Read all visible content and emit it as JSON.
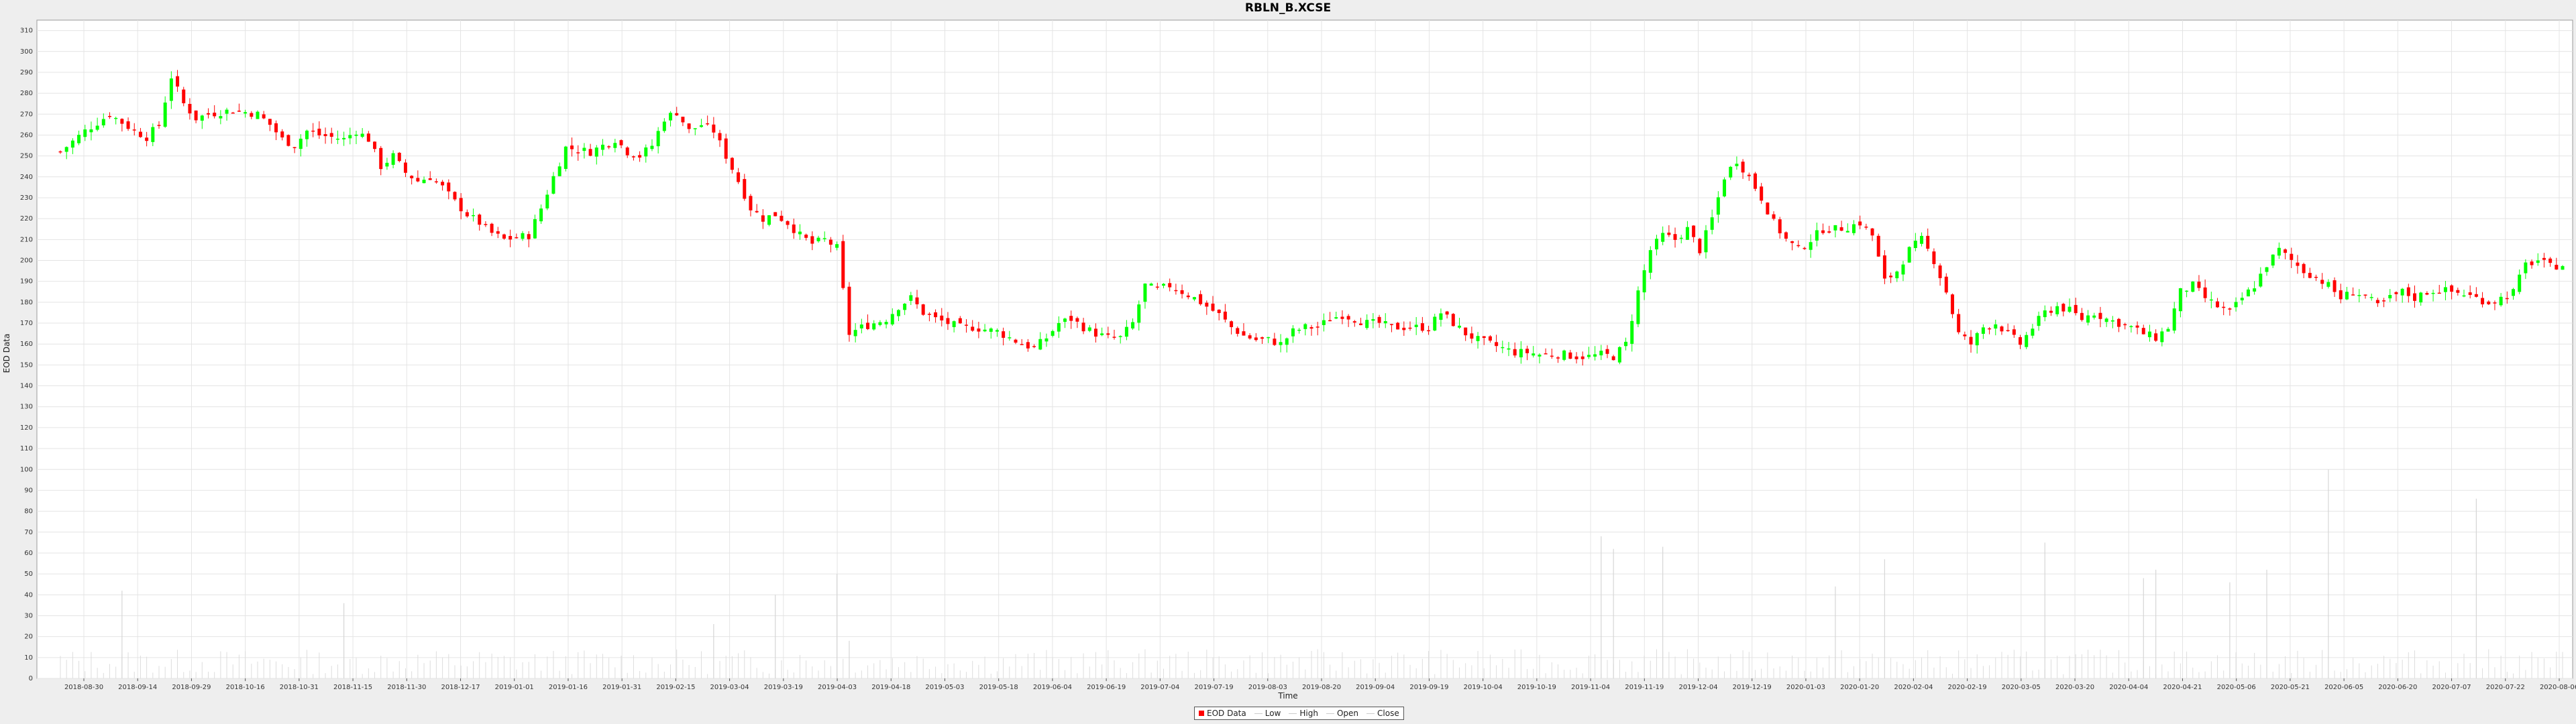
{
  "chart_data": {
    "type": "candlestick",
    "title": "RBLN_B.XCSE",
    "xlabel": "Time",
    "ylabel": "EOD Data",
    "ylim": [
      0,
      315
    ],
    "y_ticks": [
      0,
      10,
      20,
      30,
      40,
      50,
      60,
      70,
      80,
      90,
      100,
      110,
      120,
      130,
      140,
      150,
      160,
      170,
      180,
      190,
      200,
      210,
      220,
      230,
      240,
      250,
      260,
      270,
      280,
      290,
      300,
      310
    ],
    "x_ticks": [
      "2018-08-30",
      "2018-09-14",
      "2018-09-29",
      "2018-10-16",
      "2018-10-31",
      "2018-11-15",
      "2018-11-30",
      "2018-12-17",
      "2019-01-01",
      "2019-01-16",
      "2019-01-31",
      "2019-02-15",
      "2019-03-04",
      "2019-03-19",
      "2019-04-03",
      "2019-04-18",
      "2019-05-03",
      "2019-05-18",
      "2019-06-04",
      "2019-06-19",
      "2019-07-04",
      "2019-07-19",
      "2019-08-03",
      "2019-08-20",
      "2019-09-04",
      "2019-09-19",
      "2019-10-04",
      "2019-10-19",
      "2019-11-04",
      "2019-11-19",
      "2019-12-04",
      "2019-12-19",
      "2020-01-03",
      "2020-01-20",
      "2020-02-04",
      "2020-02-19",
      "2020-03-05",
      "2020-03-20",
      "2020-04-04",
      "2020-04-21",
      "2020-05-06",
      "2020-05-21",
      "2020-06-05",
      "2020-06-20",
      "2020-07-07",
      "2020-07-22",
      "2020-08-06"
    ],
    "grid": true,
    "legend_position": "bottom",
    "legend": [
      "EOD Data",
      "Low",
      "High",
      "Open",
      "Close"
    ],
    "up_color": "#00ff00",
    "down_color": "#ff0000",
    "approx_close_path": [
      [
        0,
        252
      ],
      [
        2,
        262
      ],
      [
        4,
        270
      ],
      [
        6,
        262
      ],
      [
        7,
        259
      ],
      [
        8,
        265
      ],
      [
        9,
        288
      ],
      [
        10,
        275
      ],
      [
        11,
        268
      ],
      [
        12,
        270
      ],
      [
        14,
        272
      ],
      [
        16,
        270
      ],
      [
        17,
        265
      ],
      [
        18,
        258
      ],
      [
        19,
        255
      ],
      [
        20,
        262
      ],
      [
        21,
        260
      ],
      [
        23,
        258
      ],
      [
        24,
        262
      ],
      [
        25,
        258
      ],
      [
        26,
        245
      ],
      [
        27,
        250
      ],
      [
        28,
        242
      ],
      [
        29,
        238
      ],
      [
        30,
        240
      ],
      [
        31,
        235
      ],
      [
        32,
        228
      ],
      [
        33,
        222
      ],
      [
        34,
        218
      ],
      [
        35,
        213
      ],
      [
        36,
        210
      ],
      [
        37,
        211
      ],
      [
        38,
        212
      ],
      [
        39,
        225
      ],
      [
        40,
        240
      ],
      [
        41,
        254
      ],
      [
        42,
        253
      ],
      [
        43,
        252
      ],
      [
        44,
        255
      ],
      [
        45,
        258
      ],
      [
        46,
        252
      ],
      [
        47,
        250
      ],
      [
        48,
        255
      ],
      [
        49,
        268
      ],
      [
        50,
        271
      ],
      [
        51,
        262
      ],
      [
        52,
        265
      ],
      [
        53,
        262
      ],
      [
        54,
        250
      ],
      [
        55,
        238
      ],
      [
        56,
        225
      ],
      [
        57,
        220
      ],
      [
        58,
        222
      ],
      [
        59,
        218
      ],
      [
        60,
        212
      ],
      [
        61,
        208
      ],
      [
        62,
        210
      ],
      [
        63,
        206
      ],
      [
        64,
        165
      ],
      [
        65,
        168
      ],
      [
        66,
        170
      ],
      [
        67,
        172
      ],
      [
        68,
        178
      ],
      [
        69,
        182
      ],
      [
        70,
        175
      ],
      [
        71,
        172
      ],
      [
        72,
        170
      ],
      [
        73,
        168
      ],
      [
        74,
        168
      ],
      [
        75,
        167
      ],
      [
        76,
        166
      ],
      [
        77,
        163
      ],
      [
        78,
        160
      ],
      [
        79,
        158
      ],
      [
        80,
        163
      ],
      [
        81,
        170
      ],
      [
        82,
        172
      ],
      [
        83,
        168
      ],
      [
        84,
        165
      ],
      [
        85,
        163
      ],
      [
        86,
        163
      ],
      [
        87,
        170
      ],
      [
        88,
        188
      ],
      [
        89,
        186
      ],
      [
        90,
        188
      ],
      [
        91,
        185
      ],
      [
        92,
        182
      ],
      [
        93,
        178
      ],
      [
        94,
        174
      ],
      [
        95,
        168
      ],
      [
        96,
        164
      ],
      [
        97,
        162
      ],
      [
        98,
        162
      ],
      [
        99,
        160
      ],
      [
        100,
        166
      ],
      [
        101,
        168
      ],
      [
        102,
        168
      ],
      [
        103,
        172
      ],
      [
        104,
        174
      ],
      [
        105,
        172
      ],
      [
        106,
        170
      ],
      [
        107,
        170
      ],
      [
        108,
        168
      ],
      [
        109,
        168
      ],
      [
        110,
        168
      ],
      [
        111,
        168
      ],
      [
        112,
        175
      ],
      [
        113,
        170
      ],
      [
        114,
        165
      ],
      [
        115,
        162
      ],
      [
        116,
        160
      ],
      [
        117,
        158
      ],
      [
        118,
        156
      ],
      [
        119,
        156
      ],
      [
        120,
        155
      ],
      [
        121,
        155
      ],
      [
        122,
        155
      ],
      [
        123,
        154
      ],
      [
        124,
        154
      ],
      [
        125,
        155
      ],
      [
        126,
        154
      ],
      [
        127,
        160
      ],
      [
        128,
        185
      ],
      [
        129,
        205
      ],
      [
        130,
        212
      ],
      [
        131,
        210
      ],
      [
        132,
        215
      ],
      [
        133,
        205
      ],
      [
        134,
        220
      ],
      [
        135,
        240
      ],
      [
        136,
        248
      ],
      [
        137,
        240
      ],
      [
        138,
        230
      ],
      [
        139,
        218
      ],
      [
        140,
        210
      ],
      [
        141,
        205
      ],
      [
        142,
        210
      ],
      [
        143,
        215
      ],
      [
        144,
        215
      ],
      [
        145,
        216
      ],
      [
        146,
        218
      ],
      [
        147,
        212
      ],
      [
        148,
        190
      ],
      [
        149,
        195
      ],
      [
        150,
        205
      ],
      [
        151,
        210
      ],
      [
        152,
        200
      ],
      [
        153,
        185
      ],
      [
        154,
        165
      ],
      [
        155,
        160
      ],
      [
        156,
        168
      ],
      [
        157,
        170
      ],
      [
        158,
        165
      ],
      [
        159,
        160
      ],
      [
        160,
        168
      ],
      [
        161,
        175
      ],
      [
        162,
        178
      ],
      [
        163,
        176
      ],
      [
        164,
        172
      ],
      [
        165,
        175
      ],
      [
        166,
        172
      ],
      [
        167,
        170
      ],
      [
        168,
        168
      ],
      [
        169,
        165
      ],
      [
        170,
        163
      ],
      [
        171,
        168
      ],
      [
        172,
        185
      ],
      [
        173,
        188
      ],
      [
        174,
        182
      ],
      [
        175,
        178
      ],
      [
        176,
        175
      ],
      [
        177,
        182
      ],
      [
        178,
        188
      ],
      [
        179,
        198
      ],
      [
        180,
        205
      ],
      [
        181,
        200
      ],
      [
        182,
        195
      ],
      [
        183,
        192
      ],
      [
        184,
        188
      ],
      [
        185,
        182
      ],
      [
        186,
        185
      ],
      [
        187,
        183
      ],
      [
        188,
        178
      ],
      [
        189,
        182
      ],
      [
        190,
        185
      ],
      [
        191,
        182
      ],
      [
        192,
        185
      ],
      [
        193,
        186
      ],
      [
        194,
        185
      ],
      [
        195,
        184
      ],
      [
        196,
        182
      ],
      [
        197,
        180
      ],
      [
        198,
        182
      ],
      [
        199,
        185
      ],
      [
        200,
        198
      ],
      [
        201,
        200
      ],
      [
        202,
        197
      ],
      [
        203,
        198
      ]
    ],
    "volume_spikes": [
      [
        5,
        42
      ],
      [
        23,
        36
      ],
      [
        53,
        26
      ],
      [
        58,
        40
      ],
      [
        63,
        50
      ],
      [
        64,
        18
      ],
      [
        125,
        68
      ],
      [
        126,
        62
      ],
      [
        130,
        63
      ],
      [
        144,
        44
      ],
      [
        148,
        57
      ],
      [
        161,
        65
      ],
      [
        169,
        48
      ],
      [
        170,
        52
      ],
      [
        176,
        46
      ],
      [
        179,
        52
      ],
      [
        184,
        100
      ],
      [
        196,
        86
      ]
    ]
  }
}
